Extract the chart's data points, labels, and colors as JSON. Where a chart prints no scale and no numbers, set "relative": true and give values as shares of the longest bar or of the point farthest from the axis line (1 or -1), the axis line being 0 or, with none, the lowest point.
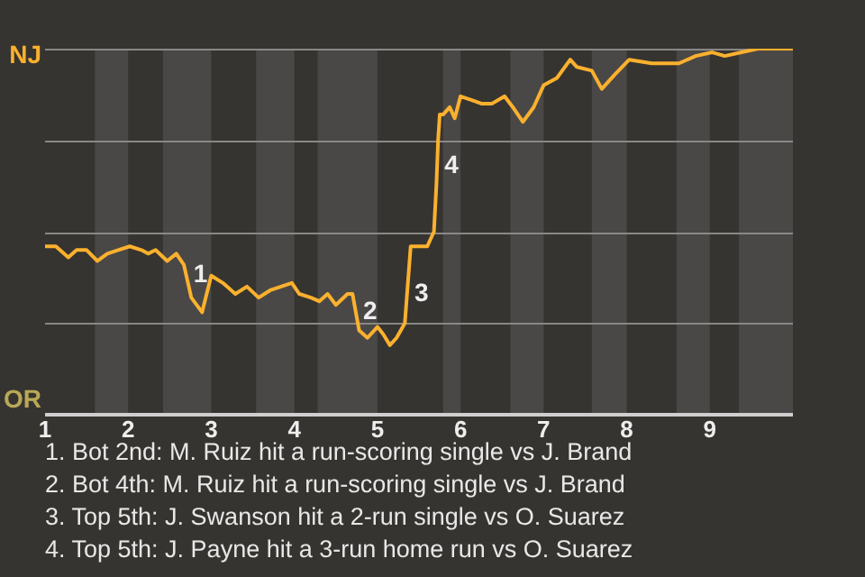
{
  "chart_data": {
    "type": "line",
    "x": [
      1,
      1.13,
      1.28,
      1.38,
      1.5,
      1.63,
      1.75,
      1.88,
      2.02,
      2.16,
      2.24,
      2.33,
      2.47,
      2.58,
      2.67,
      2.76,
      2.89,
      3,
      3.14,
      3.29,
      3.43,
      3.57,
      3.71,
      3.97,
      4.06,
      4.2,
      4.3,
      4.4,
      4.5,
      4.64,
      4.7,
      4.78,
      4.88,
      5,
      5.07,
      5.15,
      5.23,
      5.33,
      5.4,
      5.6,
      5.68,
      5.71,
      5.73,
      5.75,
      5.79,
      5.87,
      5.93,
      6,
      6.13,
      6.25,
      6.38,
      6.53,
      6.63,
      6.75,
      6.88,
      7,
      7.16,
      7.32,
      7.4,
      7.58,
      7.7,
      7.86,
      8.03,
      8.3,
      8.43,
      8.63,
      8.83,
      9.03,
      9.18,
      9.38,
      9.58,
      10
    ],
    "series": [
      {
        "values": [
          0.46,
          0.46,
          0.43,
          0.45,
          0.45,
          0.42,
          0.44,
          0.45,
          0.46,
          0.45,
          0.44,
          0.45,
          0.42,
          0.44,
          0.41,
          0.32,
          0.28,
          0.38,
          0.36,
          0.33,
          0.35,
          0.32,
          0.34,
          0.36,
          0.33,
          0.32,
          0.31,
          0.33,
          0.3,
          0.33,
          0.33,
          0.23,
          0.21,
          0.24,
          0.22,
          0.19,
          0.21,
          0.25,
          0.46,
          0.46,
          0.5,
          0.63,
          0.75,
          0.82,
          0.82,
          0.84,
          0.81,
          0.87,
          0.86,
          0.85,
          0.85,
          0.87,
          0.84,
          0.8,
          0.84,
          0.9,
          0.92,
          0.97,
          0.95,
          0.94,
          0.89,
          0.93,
          0.97,
          0.96,
          0.96,
          0.96,
          0.98,
          0.99,
          0.98,
          0.99,
          1,
          1
        ],
        "color": "#fbb12e"
      }
    ],
    "relative": true,
    "xlim": [
      1,
      10
    ],
    "xticks": [
      1,
      2,
      3,
      4,
      5,
      6,
      7,
      8,
      9
    ],
    "grid": "y",
    "legend": false,
    "marker": "none",
    "line_style": "solid",
    "bands": [
      {
        "axis": "x",
        "from": 1.6,
        "to": 2,
        "color": "#4a4846"
      },
      {
        "axis": "x",
        "from": 2.42,
        "to": 3,
        "color": "#4a4846"
      },
      {
        "axis": "x",
        "from": 3.54,
        "to": 4,
        "color": "#4a4846"
      },
      {
        "axis": "x",
        "from": 4.28,
        "to": 5,
        "color": "#4a4846"
      },
      {
        "axis": "x",
        "from": 5.79,
        "to": 6,
        "color": "#4a4846"
      },
      {
        "axis": "x",
        "from": 6.6,
        "to": 7,
        "color": "#4a4846"
      },
      {
        "axis": "x",
        "from": 7.58,
        "to": 8,
        "color": "#4a4846"
      },
      {
        "axis": "x",
        "from": 8.6,
        "to": 9,
        "color": "#4a4846"
      },
      {
        "axis": "x",
        "from": 9.35,
        "to": 10,
        "color": "#4a4846"
      }
    ],
    "annotations": [
      {
        "text": "1",
        "x": 2.7,
        "y": 0.38
      },
      {
        "text": "2",
        "x": 4.74,
        "y": 0.28
      },
      {
        "text": "3",
        "x": 5.36,
        "y": 0.33
      },
      {
        "text": "4",
        "x": 5.72,
        "y": 0.68
      },
      "NJ",
      "OR",
      "1. Bot 2nd: M. Ruiz hit a run-scoring single vs J. Brand",
      "2. Bot 4th: M. Ruiz hit a run-scoring single vs J. Brand",
      "3. Top 5th: J. Swanson hit a 2-run single vs O. Suarez",
      "4. Top 5th: J. Payne hit a 3-run home run vs O. Suarez"
    ]
  }
}
